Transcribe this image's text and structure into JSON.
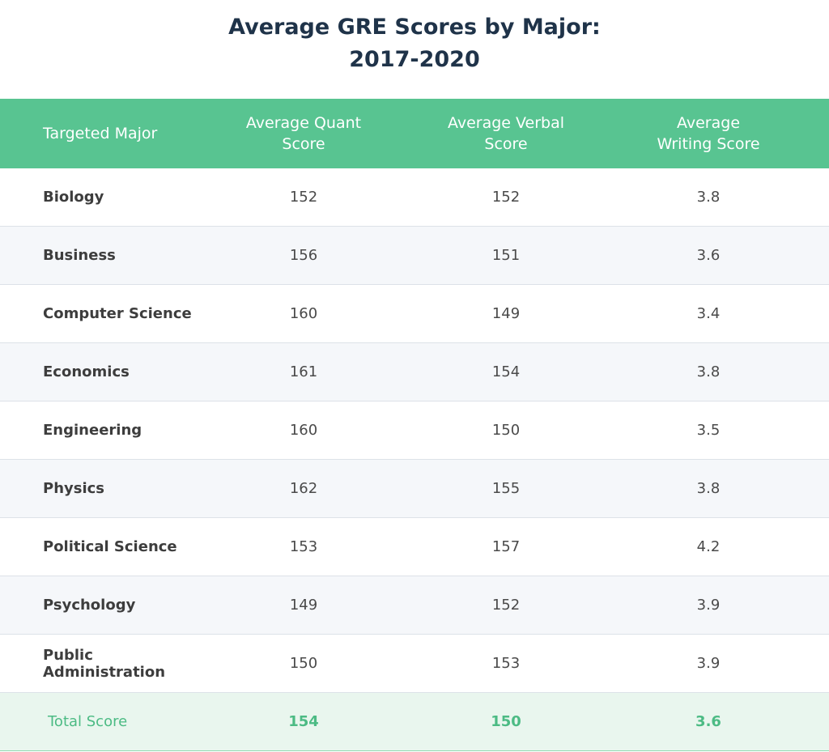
{
  "header": {
    "title_lines": [
      "Average GRE Scores by Major:",
      "2017-2020"
    ]
  },
  "table": {
    "columns": [
      "Targeted Major",
      "Average Quant Score",
      "Average Verbal Score",
      "Average Writing Score"
    ],
    "rows": [
      [
        "Biology",
        152,
        152,
        3.8
      ],
      [
        "Business",
        156,
        151,
        3.6
      ],
      [
        "Computer Science",
        160,
        149,
        3.4
      ],
      [
        "Economics",
        161,
        154,
        3.8
      ],
      [
        "Engineering",
        160,
        150,
        3.5
      ],
      [
        "Physics",
        162,
        155,
        3.8
      ],
      [
        "Political Science",
        153,
        157,
        4.2
      ],
      [
        "Psychology",
        149,
        152,
        3.9
      ],
      [
        "Public Administration",
        150,
        153,
        3.9
      ]
    ],
    "total": [
      "Total Score",
      154,
      150,
      3.6
    ]
  }
}
